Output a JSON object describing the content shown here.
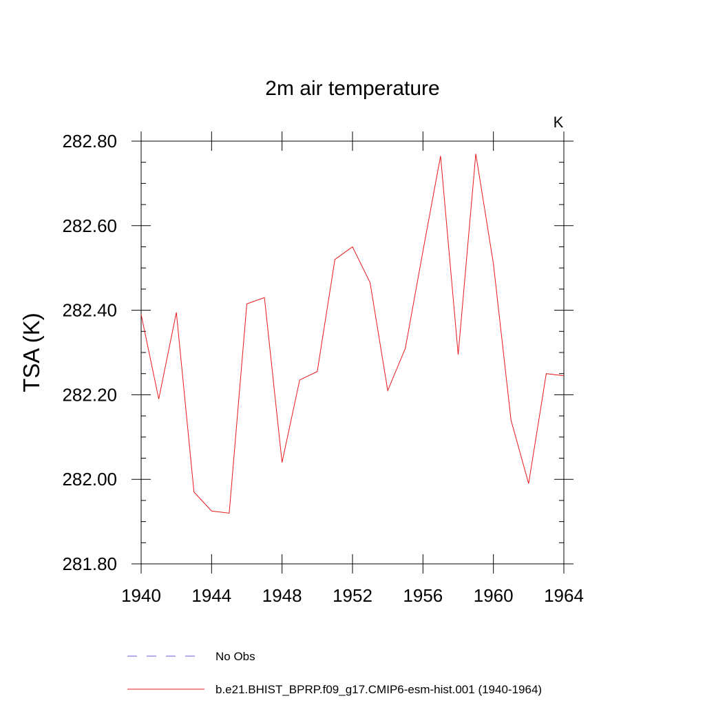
{
  "chart_data": {
    "type": "line",
    "title": "2m air temperature",
    "units_label": "K",
    "ylabel": "TSA  (K)",
    "xlabel": "",
    "xlim": [
      1940,
      1964
    ],
    "ylim": [
      281.8,
      282.8
    ],
    "x_major_ticks": [
      1940,
      1944,
      1948,
      1952,
      1956,
      1960,
      1964
    ],
    "y_major_ticks": [
      281.8,
      282.0,
      282.2,
      282.4,
      282.6,
      282.8
    ],
    "y_tick_labels": [
      "281.80",
      "282.00",
      "282.20",
      "282.40",
      "282.60",
      "282.80"
    ],
    "grid": false,
    "legend_placement": "bottom",
    "series": [
      {
        "name": "b.e21.BHIST_BPRP.f09_g17.CMIP6-esm-hist.001 (1940-1964)",
        "color": "#e8171b",
        "style": "solid",
        "x": [
          1940,
          1941,
          1942,
          1943,
          1944,
          1945,
          1946,
          1947,
          1948,
          1949,
          1950,
          1951,
          1952,
          1953,
          1954,
          1955,
          1956,
          1957,
          1958,
          1959,
          1960,
          1961,
          1962,
          1963,
          1964
        ],
        "values": [
          282.39,
          282.19,
          282.395,
          281.97,
          281.925,
          281.92,
          282.415,
          282.43,
          282.04,
          282.235,
          282.255,
          282.52,
          282.55,
          282.465,
          282.21,
          282.31,
          282.54,
          282.765,
          282.295,
          282.77,
          282.51,
          282.14,
          281.99,
          282.25,
          282.245
        ]
      },
      {
        "name": "No Obs",
        "color": "#6a5acd",
        "style": "dashed",
        "x": [],
        "values": []
      }
    ]
  }
}
